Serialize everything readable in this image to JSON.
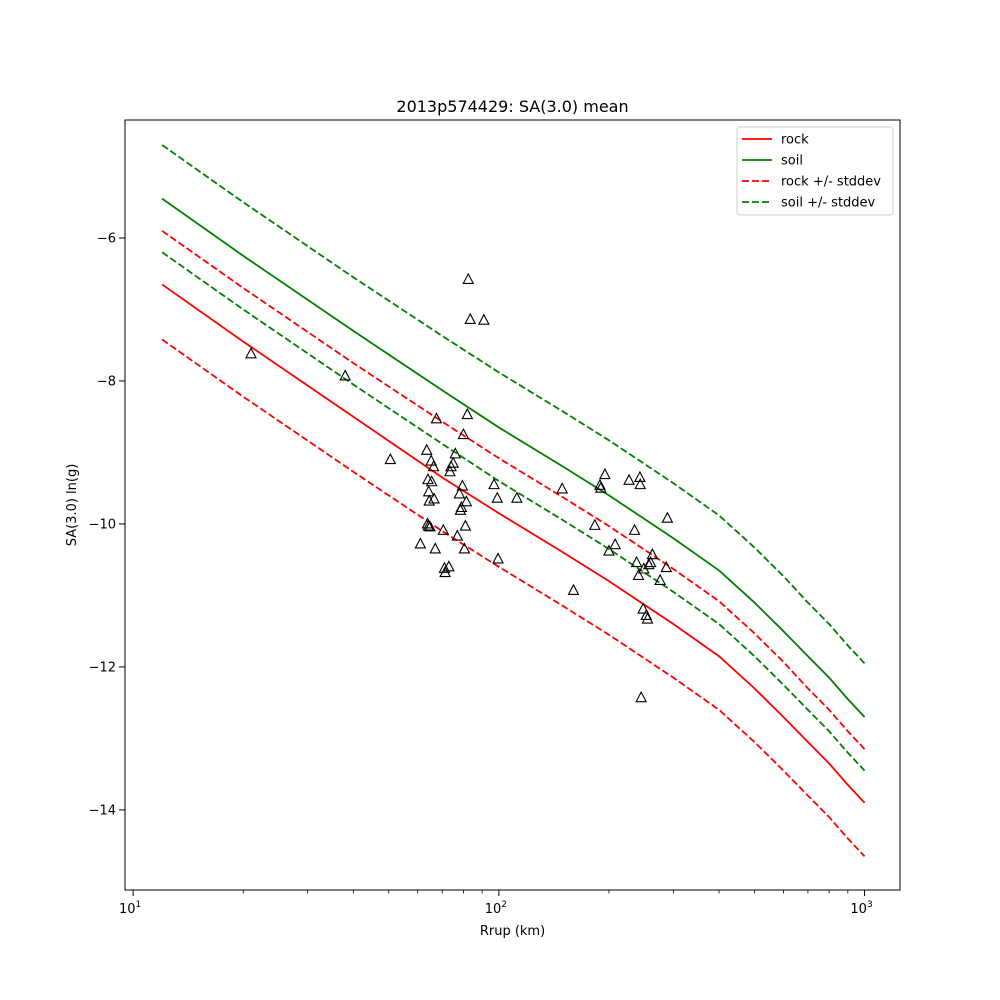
{
  "chart_data": {
    "type": "line",
    "title": "2013p574429: SA(3.0) mean",
    "xlabel": "Rrup (km)",
    "ylabel": "SA(3.0) ln(g)",
    "xscale": "log",
    "xlim": [
      9.5,
      1250
    ],
    "ylim": [
      -15.12,
      -4.35
    ],
    "x_ticks": [
      {
        "value": 10,
        "base": "10",
        "exp": "1"
      },
      {
        "value": 100,
        "base": "10",
        "exp": "2"
      },
      {
        "value": 1000,
        "base": "10",
        "exp": "3"
      }
    ],
    "y_ticks": [
      {
        "value": -14,
        "label": "−14"
      },
      {
        "value": -12,
        "label": "−12"
      },
      {
        "value": -10,
        "label": "−10"
      },
      {
        "value": -8,
        "label": "−8"
      },
      {
        "value": -6,
        "label": "−6"
      }
    ],
    "legend_position": "top-right",
    "legend": [
      {
        "label": "rock",
        "color": "#ff0000",
        "style": "solid"
      },
      {
        "label": "soil",
        "color": "#008000",
        "style": "solid"
      },
      {
        "label": "rock +/- stddev",
        "color": "#ff0000",
        "style": "dashed"
      },
      {
        "label": "soil +/- stddev",
        "color": "#008000",
        "style": "dashed"
      }
    ],
    "series": [
      {
        "name": "rock",
        "color": "#ff0000",
        "style": "solid",
        "x": [
          12,
          20,
          40,
          70,
          100,
          150,
          200,
          300,
          400,
          500,
          600,
          700,
          800,
          900,
          1000
        ],
        "y": [
          -6.65,
          -7.45,
          -8.5,
          -9.35,
          -9.85,
          -10.4,
          -10.8,
          -11.4,
          -11.85,
          -12.3,
          -12.7,
          -13.05,
          -13.35,
          -13.65,
          -13.9
        ]
      },
      {
        "name": "soil",
        "color": "#008000",
        "style": "solid",
        "x": [
          12,
          20,
          40,
          70,
          100,
          150,
          200,
          300,
          400,
          500,
          600,
          700,
          800,
          900,
          1000
        ],
        "y": [
          -5.45,
          -6.25,
          -7.3,
          -8.13,
          -8.65,
          -9.2,
          -9.6,
          -10.2,
          -10.65,
          -11.1,
          -11.5,
          -11.85,
          -12.15,
          -12.45,
          -12.7
        ]
      },
      {
        "name": "rock +/- stddev",
        "color": "#ff0000",
        "style": "dashed",
        "x": [
          12,
          20,
          40,
          70,
          100,
          150,
          200,
          300,
          400,
          500,
          600,
          700,
          800,
          900,
          1000
        ],
        "y": [
          -5.9,
          -6.7,
          -7.75,
          -8.57,
          -9.08,
          -9.63,
          -10.03,
          -10.63,
          -11.08,
          -11.53,
          -11.93,
          -12.3,
          -12.6,
          -12.9,
          -13.15
        ]
      },
      {
        "name": "rock +/- stddev",
        "color": "#ff0000",
        "style": "dashed",
        "x": [
          12,
          20,
          40,
          70,
          100,
          150,
          200,
          300,
          400,
          500,
          600,
          700,
          800,
          900,
          1000
        ],
        "y": [
          -7.42,
          -8.22,
          -9.27,
          -10.1,
          -10.6,
          -11.15,
          -11.55,
          -12.15,
          -12.6,
          -13.05,
          -13.45,
          -13.8,
          -14.1,
          -14.4,
          -14.65
        ]
      },
      {
        "name": "soil +/- stddev",
        "color": "#008000",
        "style": "dashed",
        "x": [
          12,
          20,
          40,
          70,
          100,
          150,
          200,
          300,
          400,
          500,
          600,
          700,
          800,
          900,
          1000
        ],
        "y": [
          -4.7,
          -5.5,
          -6.55,
          -7.37,
          -7.88,
          -8.43,
          -8.83,
          -9.43,
          -9.88,
          -10.33,
          -10.73,
          -11.1,
          -11.4,
          -11.7,
          -11.95
        ]
      },
      {
        "name": "soil +/- stddev",
        "color": "#008000",
        "style": "dashed",
        "x": [
          12,
          20,
          40,
          70,
          100,
          150,
          200,
          300,
          400,
          500,
          600,
          700,
          800,
          900,
          1000
        ],
        "y": [
          -6.2,
          -7.0,
          -8.05,
          -8.88,
          -9.4,
          -9.95,
          -10.35,
          -10.95,
          -11.4,
          -11.85,
          -12.25,
          -12.6,
          -12.9,
          -13.2,
          -13.45
        ]
      }
    ],
    "observations": {
      "marker": "triangle",
      "color": "#000000",
      "points": [
        [
          21,
          -7.62
        ],
        [
          38,
          -7.93
        ],
        [
          50.5,
          -9.1
        ],
        [
          63.5,
          -8.97
        ],
        [
          64,
          -9.38
        ],
        [
          64.3,
          -9.55
        ],
        [
          64.5,
          -9.68
        ],
        [
          63.8,
          -10.0
        ],
        [
          64.2,
          -10.03
        ],
        [
          64.8,
          -10.04
        ],
        [
          65.3,
          -9.12
        ],
        [
          65.5,
          -9.41
        ],
        [
          66.3,
          -9.2
        ],
        [
          66.5,
          -9.65
        ],
        [
          67,
          -10.35
        ],
        [
          67.5,
          -8.53
        ],
        [
          61,
          -10.28
        ],
        [
          70.5,
          -10.09
        ],
        [
          71,
          -10.62
        ],
        [
          71.3,
          -10.68
        ],
        [
          73,
          -10.6
        ],
        [
          73.5,
          -9.27
        ],
        [
          74,
          -9.2
        ],
        [
          75,
          -9.15
        ],
        [
          76,
          -9.02
        ],
        [
          77,
          -10.17
        ],
        [
          78,
          -9.58
        ],
        [
          78.5,
          -9.81
        ],
        [
          79,
          -9.77
        ],
        [
          79.5,
          -9.47
        ],
        [
          80,
          -8.75
        ],
        [
          80.5,
          -10.35
        ],
        [
          81,
          -10.03
        ],
        [
          81.5,
          -9.69
        ],
        [
          82,
          -8.47
        ],
        [
          82.5,
          -6.58
        ],
        [
          83.5,
          -7.14
        ],
        [
          91,
          -7.15
        ],
        [
          97,
          -9.45
        ],
        [
          99,
          -9.64
        ],
        [
          99.5,
          -10.49
        ],
        [
          112,
          -9.64
        ],
        [
          149,
          -9.51
        ],
        [
          160,
          -10.93
        ],
        [
          183,
          -10.02
        ],
        [
          189,
          -9.46
        ],
        [
          190,
          -9.5
        ],
        [
          195,
          -9.31
        ],
        [
          200,
          -10.38
        ],
        [
          208,
          -10.29
        ],
        [
          227,
          -9.39
        ],
        [
          235,
          -10.09
        ],
        [
          238,
          -10.54
        ],
        [
          241,
          -10.72
        ],
        [
          243,
          -9.35
        ],
        [
          243.5,
          -9.45
        ],
        [
          245,
          -12.43
        ],
        [
          248,
          -11.19
        ],
        [
          249,
          -10.63
        ],
        [
          253,
          -11.28
        ],
        [
          255,
          -11.33
        ],
        [
          257,
          -10.57
        ],
        [
          260,
          -10.54
        ],
        [
          263,
          -10.43
        ],
        [
          276,
          -10.79
        ],
        [
          287,
          -10.61
        ],
        [
          289,
          -9.92
        ]
      ]
    }
  }
}
